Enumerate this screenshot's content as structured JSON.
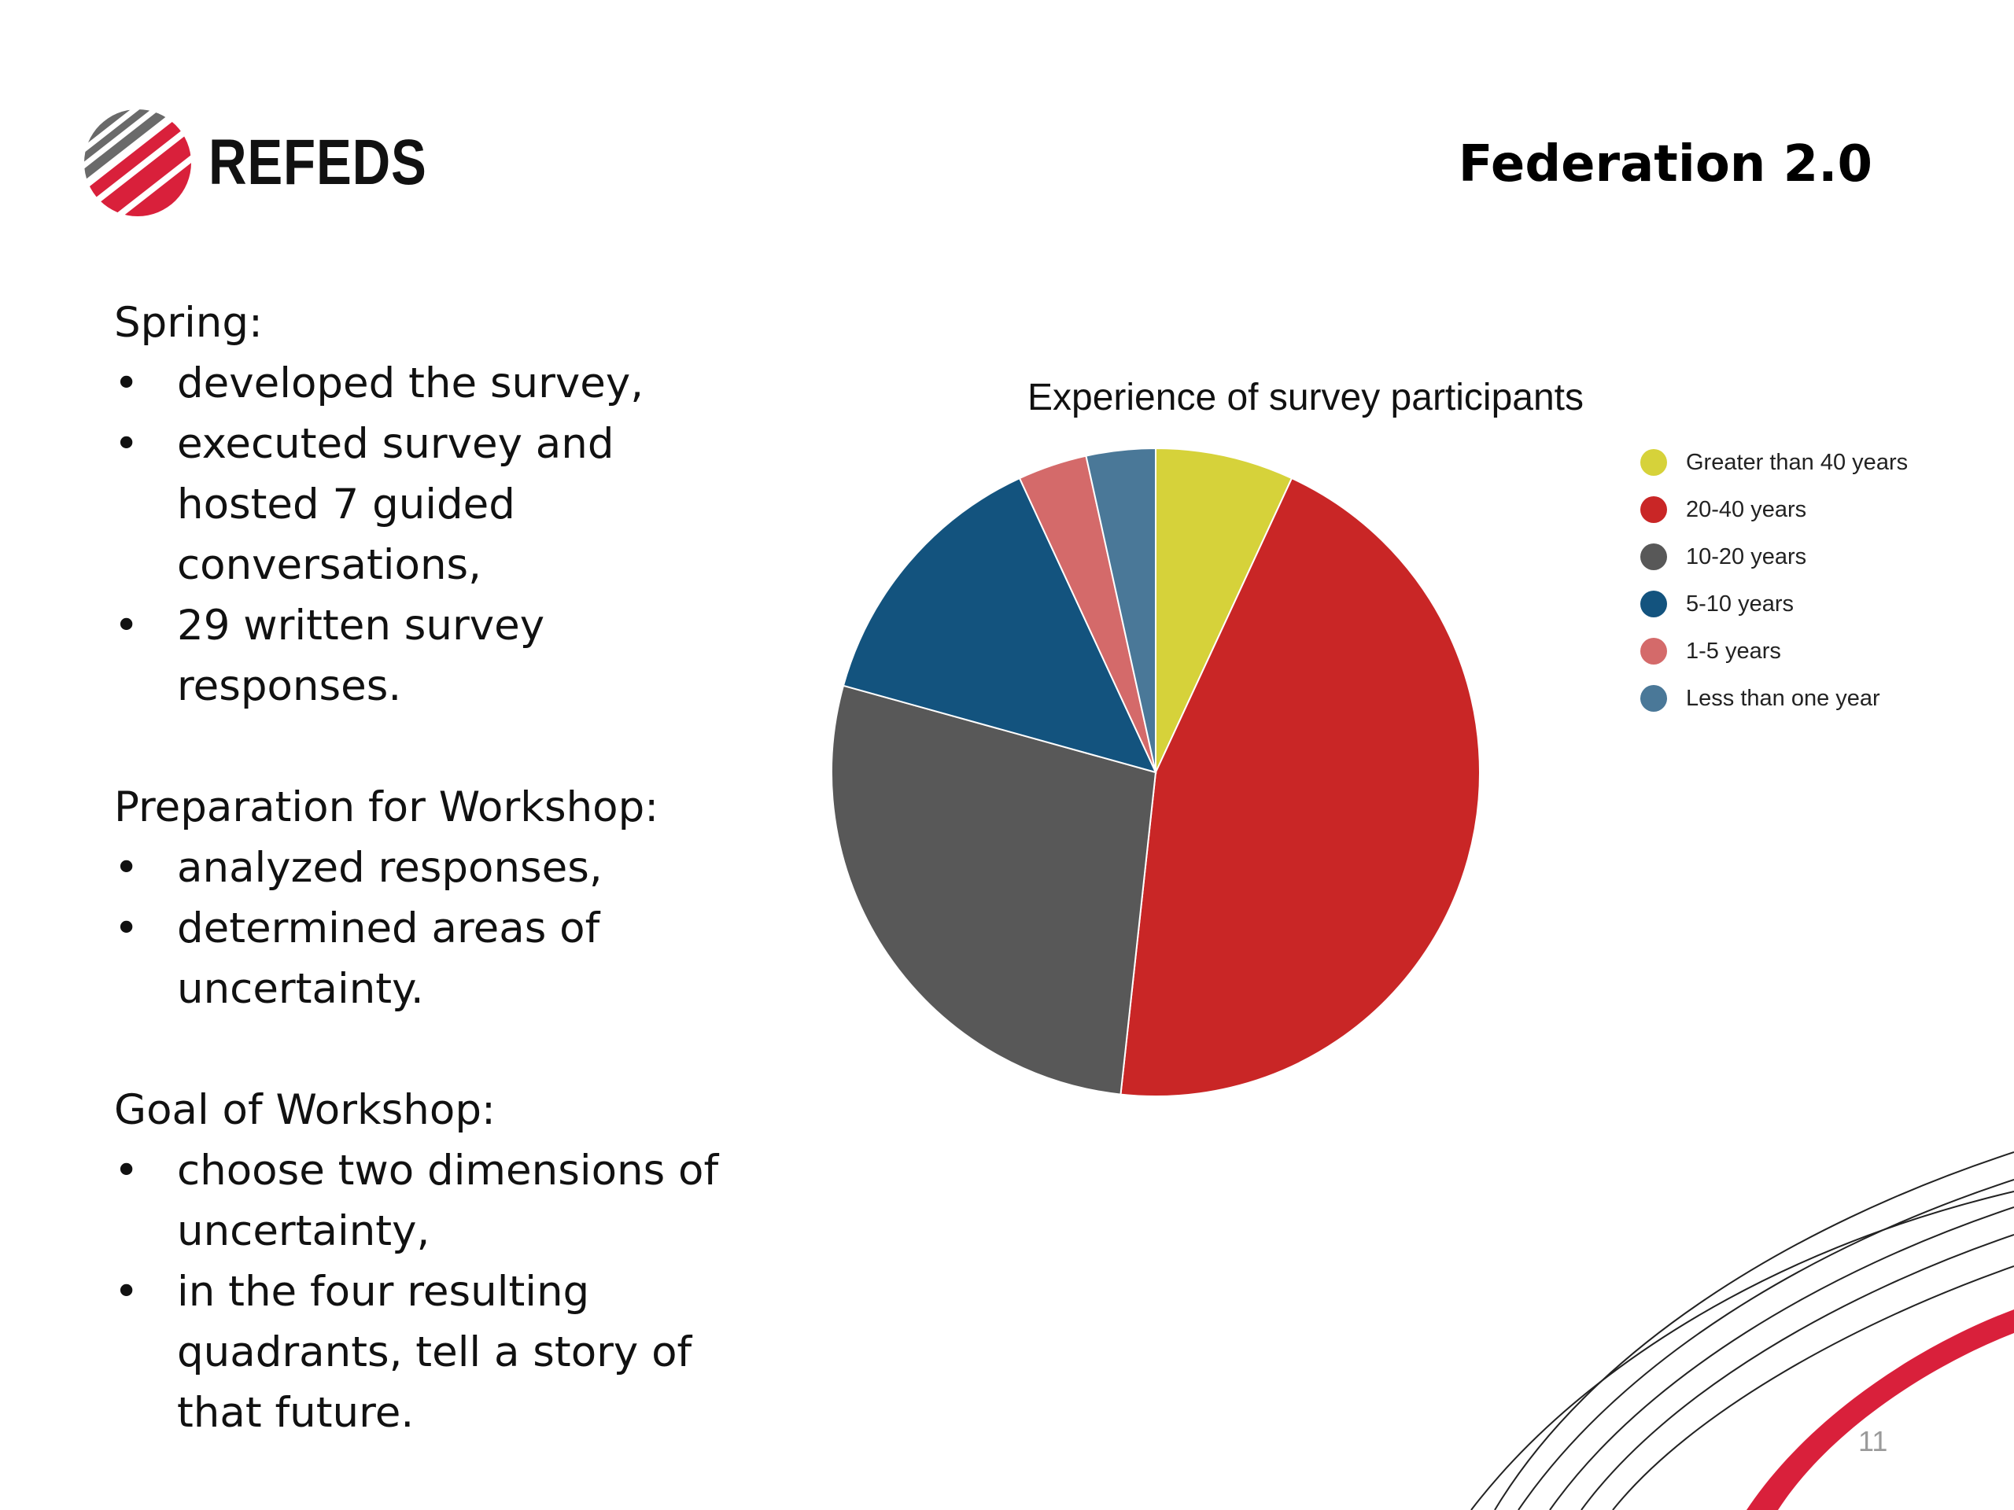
{
  "slide": {
    "brand": "REFEDS",
    "title": "Federation 2.0",
    "page_number": "11"
  },
  "sections": [
    {
      "heading": "Spring:",
      "bullets": [
        [
          "developed the survey,"
        ],
        [
          "executed survey and",
          "hosted 7 guided",
          "conversations,"
        ],
        [
          "29 written survey",
          "responses."
        ]
      ]
    },
    {
      "heading": "Preparation for Workshop:",
      "bullets": [
        [
          "analyzed responses,"
        ],
        [
          "determined areas of",
          "uncertainty."
        ]
      ]
    },
    {
      "heading": "Goal of Workshop:",
      "bullets": [
        [
          "choose two dimensions of",
          "uncertainty,"
        ],
        [
          "in the four resulting",
          "quadrants, tell a story of",
          "that future."
        ]
      ]
    }
  ],
  "bullet_char": "•",
  "chart_data": {
    "type": "pie",
    "title": "Experience of survey participants",
    "legend_position": "right",
    "slices": [
      {
        "label": "Greater than 40 years",
        "value": 2,
        "color": "#d6d23a"
      },
      {
        "label": "20-40 years",
        "value": 13,
        "color": "#c92626"
      },
      {
        "label": "10-20 years",
        "value": 8,
        "color": "#585858"
      },
      {
        "label": "5-10 years",
        "value": 4,
        "color": "#13537e"
      },
      {
        "label": "1-5 years",
        "value": 1,
        "color": "#d46a6a"
      },
      {
        "label": "Less than one year",
        "value": 1,
        "color": "#4a7898"
      }
    ]
  },
  "colors": {
    "brand_red": "#d9203b",
    "brand_gray": "#666666"
  }
}
